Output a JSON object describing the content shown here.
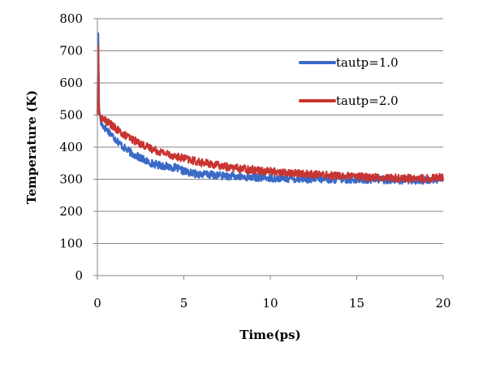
{
  "chart_data": {
    "type": "line",
    "xlabel": "Time(ps)",
    "ylabel": "Temperature (K)",
    "xlim": [
      0,
      20
    ],
    "ylim": [
      0,
      800
    ],
    "xticks": [
      "0",
      "5",
      "10",
      "15",
      "20"
    ],
    "yticks": [
      "0",
      "100",
      "200",
      "300",
      "400",
      "500",
      "600",
      "700",
      "800"
    ],
    "grid": "horizontal",
    "legend_position": "top-right",
    "series": [
      {
        "name": "tautp=1.0",
        "color": "#3a6ac6",
        "x": [
          0,
          0.05,
          0.1,
          0.2,
          0.4,
          0.6,
          0.8,
          1,
          1.5,
          2,
          2.5,
          3,
          3.5,
          4,
          4.5,
          5,
          5.5,
          6,
          7,
          8,
          9,
          10,
          11,
          12,
          13,
          14,
          15,
          16,
          17,
          18,
          19,
          20
        ],
        "y": [
          500,
          755,
          520,
          475,
          462,
          452,
          440,
          428,
          400,
          380,
          366,
          352,
          345,
          340,
          336,
          325,
          318,
          316,
          312,
          308,
          306,
          304,
          302,
          301,
          300,
          300,
          299,
          299,
          298,
          297,
          297,
          302
        ]
      },
      {
        "name": "tautp=2.0",
        "color": "#c83530",
        "x": [
          0,
          0.05,
          0.1,
          0.2,
          0.4,
          0.6,
          0.8,
          1,
          1.5,
          2,
          2.5,
          3,
          3.5,
          4,
          4.5,
          5,
          5.5,
          6,
          7,
          8,
          9,
          10,
          11,
          12,
          13,
          14,
          15,
          16,
          17,
          18,
          19,
          20
        ],
        "y": [
          500,
          715,
          505,
          492,
          485,
          478,
          470,
          460,
          440,
          425,
          410,
          398,
          388,
          380,
          372,
          365,
          358,
          352,
          343,
          335,
          330,
          325,
          320,
          317,
          314,
          311,
          308,
          306,
          304,
          303,
          302,
          308
        ]
      }
    ]
  }
}
